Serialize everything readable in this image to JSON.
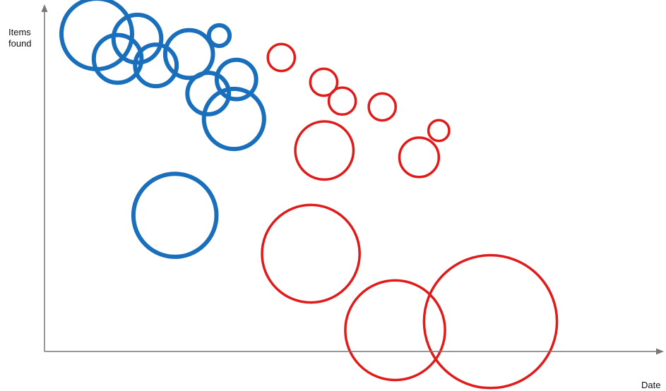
{
  "chart_data": {
    "type": "scatter",
    "subtype": "bubble",
    "title": "",
    "xlabel": "Date",
    "ylabel": "Items found",
    "ylabel_lines": [
      "Items",
      "found"
    ],
    "xlim": [
      0,
      100
    ],
    "ylim": [
      0,
      100
    ],
    "grid": false,
    "legend": "none",
    "series": [
      {
        "color": "#1a6fbc",
        "points": [
          {
            "x": 8.5,
            "y": 92.6,
            "size": 34
          },
          {
            "x": 15.1,
            "y": 91.2,
            "size": 23
          },
          {
            "x": 11.9,
            "y": 85.3,
            "size": 23
          },
          {
            "x": 18.1,
            "y": 83.4,
            "size": 20
          },
          {
            "x": 23.5,
            "y": 86.7,
            "size": 23
          },
          {
            "x": 28.4,
            "y": 92.1,
            "size": 10
          },
          {
            "x": 31.2,
            "y": 79.3,
            "size": 19
          },
          {
            "x": 26.6,
            "y": 75.2,
            "size": 20
          },
          {
            "x": 30.8,
            "y": 67.8,
            "size": 29
          },
          {
            "x": 21.2,
            "y": 39.7,
            "size": 40
          }
        ]
      },
      {
        "color": "#e11a1a",
        "points": [
          {
            "x": 38.5,
            "y": 85.7,
            "size": 13
          },
          {
            "x": 45.4,
            "y": 78.5,
            "size": 13
          },
          {
            "x": 48.4,
            "y": 73.0,
            "size": 13
          },
          {
            "x": 54.9,
            "y": 71.3,
            "size": 13
          },
          {
            "x": 64.1,
            "y": 64.4,
            "size": 10
          },
          {
            "x": 45.5,
            "y": 58.6,
            "size": 28
          },
          {
            "x": 60.9,
            "y": 56.6,
            "size": 19
          },
          {
            "x": 43.3,
            "y": 28.5,
            "size": 47
          },
          {
            "x": 57.0,
            "y": 6.2,
            "size": 48
          },
          {
            "x": 72.5,
            "y": 8.7,
            "size": 64
          }
        ]
      }
    ]
  }
}
